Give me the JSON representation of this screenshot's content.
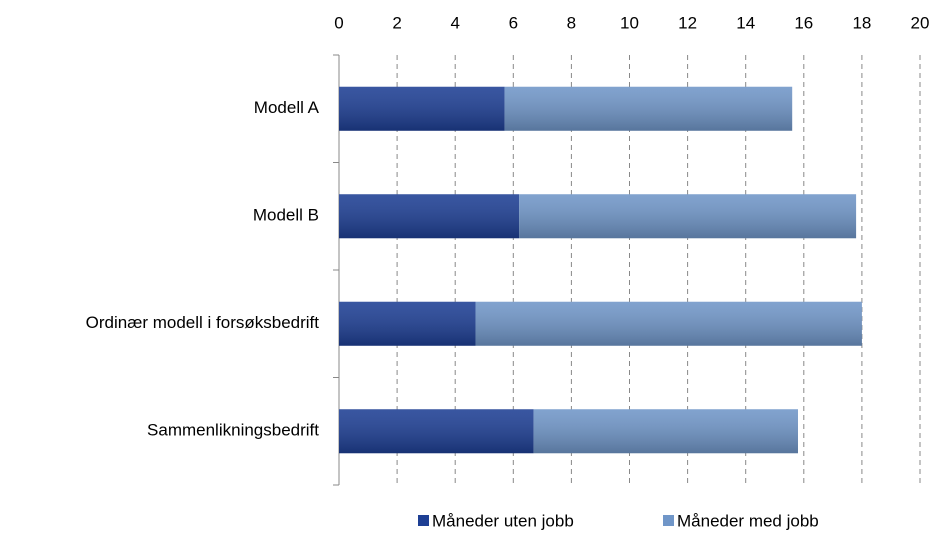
{
  "chart_data": {
    "type": "stacked_barh",
    "categories": [
      "Modell A",
      "Modell B",
      "Ordinær modell i forsøksbedrift",
      "Sammenlikningsbedrift"
    ],
    "series": [
      {
        "name": "Måneder uten jobb",
        "color": "#1e3f94",
        "values": [
          5.7,
          6.2,
          4.7,
          6.7
        ]
      },
      {
        "name": "Måneder med jobb",
        "color": "#7096c8",
        "values": [
          9.9,
          11.6,
          13.3,
          9.1
        ]
      }
    ],
    "xlim": [
      0,
      20
    ],
    "xticks": [
      0,
      2,
      4,
      6,
      8,
      10,
      12,
      14,
      16,
      18,
      20
    ],
    "grid": true,
    "legend": "bottom"
  }
}
